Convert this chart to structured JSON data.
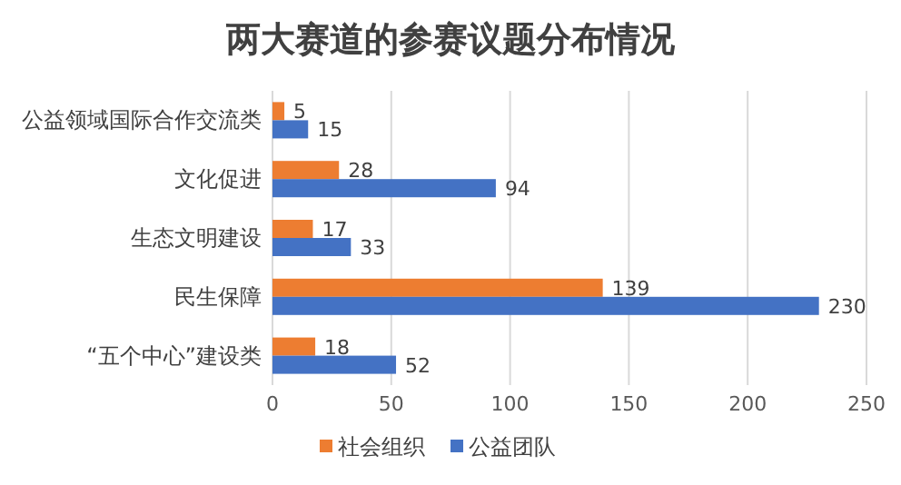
{
  "chart_data": {
    "type": "bar",
    "orientation": "horizontal",
    "title": "两大赛道的参赛议题分布情况",
    "categories": [
      "公益领域国际合作交流类",
      "文化促进",
      "生态文明建设",
      "民生保障",
      "“五个中心”建设类"
    ],
    "series": [
      {
        "name": "社会组织",
        "color": "#ed7d31",
        "values": [
          5,
          28,
          17,
          139,
          18
        ]
      },
      {
        "name": "公益团队",
        "color": "#4472c4",
        "values": [
          15,
          94,
          33,
          230,
          52
        ]
      }
    ],
    "xlim": [
      0,
      250
    ],
    "xticks": [
      0,
      50,
      100,
      150,
      200,
      250
    ],
    "grid": "x",
    "legend": "bottom",
    "data_labels": true
  }
}
